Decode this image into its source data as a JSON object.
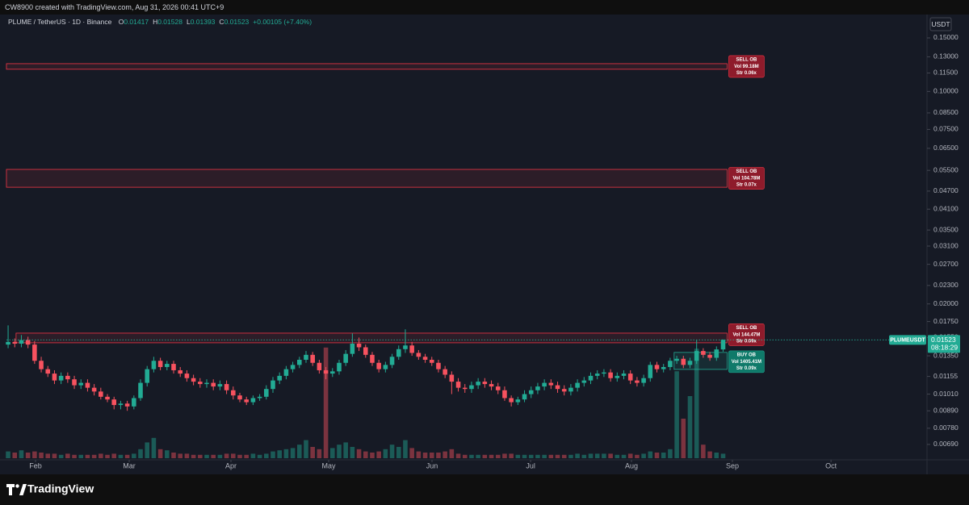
{
  "header": {
    "credit": "CW8900 created with TradingView.com, Aug 31, 2026 00:41 UTC+9"
  },
  "branding": "TradingView",
  "chart_data": {
    "type": "candlestick",
    "title": "PLUME / TetherUS · 1D · Binance",
    "ohlc": [
      {
        "label": "O",
        "value": 0.01417
      },
      {
        "label": "H",
        "value": 0.01528
      },
      {
        "label": "L",
        "value": 0.01393
      },
      {
        "label": "C",
        "value": 0.01523
      }
    ],
    "change": "+0.00105 (+7.40%)",
    "currency": "USDT",
    "symbol": "PLUMEUSDT",
    "last_price": 0.01523,
    "countdown": "08:18:29",
    "up_color": "#22ab94",
    "down_color": "#f7525f",
    "open": [
      0.0147,
      0.015,
      0.0148,
      0.0152,
      0.0147,
      0.013,
      0.0122,
      0.0118,
      0.0112,
      0.0116,
      0.0113,
      0.0108,
      0.011,
      0.0106,
      0.0103,
      0.0099,
      0.0097,
      0.0093,
      0.0094,
      0.0092,
      0.0098,
      0.011,
      0.0122,
      0.013,
      0.0124,
      0.0127,
      0.0121,
      0.0118,
      0.0114,
      0.0111,
      0.0109,
      0.011,
      0.0107,
      0.0109,
      0.0104,
      0.01,
      0.0097,
      0.0095,
      0.0098,
      0.0099,
      0.0105,
      0.0112,
      0.0116,
      0.0122,
      0.0126,
      0.0131,
      0.0136,
      0.0128,
      0.0121,
      0.0118,
      0.012,
      0.0128,
      0.0137,
      0.0148,
      0.0144,
      0.0136,
      0.0128,
      0.0122,
      0.0126,
      0.0134,
      0.0142,
      0.0146,
      0.0138,
      0.0134,
      0.0131,
      0.0128,
      0.0122,
      0.0117,
      0.0111,
      0.0106,
      0.0105,
      0.0108,
      0.0111,
      0.0109,
      0.0107,
      0.0104,
      0.0098,
      0.0095,
      0.0097,
      0.0101,
      0.0104,
      0.0107,
      0.011,
      0.0108,
      0.0105,
      0.0103,
      0.0106,
      0.011,
      0.0112,
      0.0116,
      0.0118,
      0.0119,
      0.0114,
      0.0116,
      0.0118,
      0.0112,
      0.011,
      0.0114,
      0.0126,
      0.0122,
      0.0124,
      0.013,
      0.0132,
      0.0126,
      0.013,
      0.014,
      0.0136,
      0.0133,
      0.01417
    ],
    "high": [
      0.017,
      0.0154,
      0.0158,
      0.0156,
      0.0151,
      0.0134,
      0.0125,
      0.0121,
      0.0119,
      0.0119,
      0.0116,
      0.0113,
      0.0113,
      0.0109,
      0.0106,
      0.0101,
      0.0099,
      0.0096,
      0.0096,
      0.01,
      0.0113,
      0.0125,
      0.0134,
      0.0133,
      0.013,
      0.013,
      0.0124,
      0.0121,
      0.0117,
      0.0114,
      0.0113,
      0.0113,
      0.0112,
      0.0112,
      0.0107,
      0.0102,
      0.0099,
      0.01,
      0.0101,
      0.0108,
      0.0115,
      0.0119,
      0.0125,
      0.0129,
      0.0134,
      0.014,
      0.0139,
      0.0131,
      0.0124,
      0.0123,
      0.0131,
      0.0141,
      0.016,
      0.0155,
      0.0147,
      0.0139,
      0.0131,
      0.0129,
      0.0137,
      0.0146,
      0.0165,
      0.015,
      0.0141,
      0.0137,
      0.0134,
      0.0131,
      0.0125,
      0.012,
      0.0114,
      0.0109,
      0.0111,
      0.0114,
      0.0114,
      0.0112,
      0.011,
      0.0107,
      0.01,
      0.0099,
      0.0104,
      0.0107,
      0.011,
      0.0113,
      0.0113,
      0.0111,
      0.0108,
      0.0109,
      0.0113,
      0.0115,
      0.0119,
      0.0121,
      0.0122,
      0.0122,
      0.0119,
      0.0121,
      0.0121,
      0.0115,
      0.0117,
      0.0129,
      0.0129,
      0.0127,
      0.0133,
      0.0135,
      0.0135,
      0.0133,
      0.0152,
      0.0143,
      0.0139,
      0.0145,
      0.01528
    ],
    "low": [
      0.0143,
      0.0144,
      0.0144,
      0.0143,
      0.0127,
      0.0119,
      0.0115,
      0.0109,
      0.0109,
      0.011,
      0.0105,
      0.0105,
      0.0103,
      0.01,
      0.0097,
      0.0095,
      0.009,
      0.009,
      0.0089,
      0.009,
      0.0096,
      0.0107,
      0.0119,
      0.0121,
      0.0121,
      0.0118,
      0.0115,
      0.0111,
      0.0108,
      0.0106,
      0.0106,
      0.0104,
      0.0104,
      0.0101,
      0.0097,
      0.0095,
      0.0093,
      0.0093,
      0.0096,
      0.0097,
      0.0102,
      0.0109,
      0.0113,
      0.0119,
      0.0123,
      0.0128,
      0.0125,
      0.0118,
      0.0113,
      0.0115,
      0.0117,
      0.0125,
      0.0134,
      0.014,
      0.0133,
      0.0125,
      0.0119,
      0.0119,
      0.0123,
      0.0131,
      0.0138,
      0.0135,
      0.0131,
      0.0128,
      0.0125,
      0.0119,
      0.0114,
      0.0101,
      0.0103,
      0.0102,
      0.0102,
      0.0105,
      0.0106,
      0.0104,
      0.0101,
      0.0096,
      0.0092,
      0.0093,
      0.0095,
      0.0098,
      0.0101,
      0.0104,
      0.0105,
      0.0102,
      0.01,
      0.01,
      0.0103,
      0.0107,
      0.0109,
      0.0113,
      0.0115,
      0.0111,
      0.0111,
      0.0113,
      0.0109,
      0.0107,
      0.0107,
      0.0111,
      0.0119,
      0.0119,
      0.0121,
      0.0127,
      0.0123,
      0.0123,
      0.0127,
      0.0133,
      0.013,
      0.013,
      0.01393
    ],
    "close": [
      0.015,
      0.0148,
      0.0152,
      0.0147,
      0.013,
      0.0122,
      0.0118,
      0.0112,
      0.0116,
      0.0113,
      0.0108,
      0.011,
      0.0106,
      0.0103,
      0.0099,
      0.0097,
      0.0093,
      0.0094,
      0.0092,
      0.0098,
      0.011,
      0.0122,
      0.013,
      0.0124,
      0.0127,
      0.0121,
      0.0118,
      0.0114,
      0.0111,
      0.0109,
      0.011,
      0.0107,
      0.0109,
      0.0104,
      0.01,
      0.0097,
      0.0095,
      0.0098,
      0.0099,
      0.0105,
      0.0112,
      0.0116,
      0.0122,
      0.0126,
      0.0131,
      0.0136,
      0.0128,
      0.0121,
      0.0118,
      0.012,
      0.0128,
      0.0137,
      0.0148,
      0.0144,
      0.0136,
      0.0128,
      0.0122,
      0.0126,
      0.0134,
      0.0142,
      0.0146,
      0.0138,
      0.0134,
      0.0131,
      0.0128,
      0.0122,
      0.0117,
      0.0111,
      0.0106,
      0.0105,
      0.0108,
      0.0111,
      0.0109,
      0.0107,
      0.0104,
      0.0098,
      0.0095,
      0.0097,
      0.0101,
      0.0104,
      0.0107,
      0.011,
      0.0108,
      0.0105,
      0.0103,
      0.0106,
      0.011,
      0.0112,
      0.0116,
      0.0118,
      0.0119,
      0.0114,
      0.0116,
      0.0118,
      0.0112,
      0.011,
      0.0114,
      0.0126,
      0.0122,
      0.0124,
      0.013,
      0.0132,
      0.0126,
      0.013,
      0.014,
      0.0136,
      0.0133,
      0.01417,
      0.01523
    ],
    "volume": [
      6,
      5,
      7,
      5,
      6,
      5,
      4,
      4,
      3,
      4,
      3,
      3,
      3,
      3,
      4,
      3,
      4,
      3,
      3,
      4,
      8,
      14,
      18,
      8,
      7,
      5,
      4,
      4,
      3,
      3,
      3,
      3,
      3,
      4,
      4,
      3,
      3,
      4,
      3,
      4,
      6,
      7,
      8,
      9,
      12,
      16,
      10,
      8,
      98,
      9,
      12,
      14,
      10,
      8,
      6,
      5,
      6,
      8,
      12,
      10,
      16,
      9,
      6,
      5,
      5,
      5,
      6,
      8,
      4,
      3,
      3,
      3,
      3,
      3,
      3,
      4,
      4,
      3,
      3,
      3,
      3,
      3,
      3,
      3,
      3,
      3,
      4,
      3,
      4,
      4,
      4,
      4,
      3,
      3,
      4,
      3,
      4,
      6,
      5,
      5,
      8,
      77,
      35,
      55,
      97,
      12,
      6,
      5,
      4
    ],
    "volume_lim": [
      0,
      100
    ],
    "xlim": [
      -0.25,
      138.8
    ],
    "xticks": [
      {
        "value": 4.14,
        "label": "Feb"
      },
      {
        "value": 18.29,
        "label": "Mar"
      },
      {
        "value": 33.66,
        "label": "Apr"
      },
      {
        "value": 48.42,
        "label": "May"
      },
      {
        "value": 64.03,
        "label": "Jun"
      },
      {
        "value": 78.92,
        "label": "Jul"
      },
      {
        "value": 94.16,
        "label": "Aug"
      },
      {
        "value": 109.4,
        "label": "Sep"
      },
      {
        "value": 124.3,
        "label": "Oct"
      }
    ],
    "ylim": [
      0.00614,
      0.1614
    ],
    "log_scale": true,
    "grid": false,
    "yticks": [
      {
        "value": 0.15,
        "label": "0.15000"
      },
      {
        "value": 0.13,
        "label": "0.13000"
      },
      {
        "value": 0.115,
        "label": "0.11500"
      },
      {
        "value": 0.1,
        "label": "0.10000"
      },
      {
        "value": 0.085,
        "label": "0.08500"
      },
      {
        "value": 0.075,
        "label": "0.07500"
      },
      {
        "value": 0.065,
        "label": "0.06500"
      },
      {
        "value": 0.055,
        "label": "0.05500"
      },
      {
        "value": 0.047,
        "label": "0.04700"
      },
      {
        "value": 0.041,
        "label": "0.04100"
      },
      {
        "value": 0.035,
        "label": "0.03500"
      },
      {
        "value": 0.031,
        "label": "0.03100"
      },
      {
        "value": 0.027,
        "label": "0.02700"
      },
      {
        "value": 0.023,
        "label": "0.02300"
      },
      {
        "value": 0.02,
        "label": "0.02000"
      },
      {
        "value": 0.0175,
        "label": "0.01750"
      },
      {
        "value": 0.0155,
        "label": "0.01550"
      },
      {
        "value": 0.0135,
        "label": "0.01350"
      },
      {
        "value": 0.01155,
        "label": "0.01155"
      },
      {
        "value": 0.0101,
        "label": "0.01010"
      },
      {
        "value": 0.0089,
        "label": "0.00890"
      },
      {
        "value": 0.0078,
        "label": "0.00780"
      },
      {
        "value": 0.0069,
        "label": "0.00690"
      }
    ],
    "zones": [
      {
        "kind": "SELL OB",
        "vol": "Vol 99.18M",
        "strength": "Str 0.06x",
        "top": 0.1234,
        "bottom": 0.1183,
        "start": -0.25,
        "end": 108.6,
        "color": "#f23645"
      },
      {
        "kind": "SELL OB",
        "vol": "Vol 104.78M",
        "strength": "Str 0.07x",
        "top": 0.0554,
        "bottom": 0.0484,
        "start": -0.25,
        "end": 108.6,
        "color": "#f23645"
      },
      {
        "kind": "SELL OB",
        "vol": "Vol 144.47M",
        "strength": "Str 0.09x",
        "top": 0.01603,
        "bottom": 0.0149,
        "start": 1.2,
        "end": 108.6,
        "color": "#f23645"
      },
      {
        "kind": "BUY OB",
        "vol": "Vol 1405.41M",
        "strength": "Str 0.09x",
        "top": 0.01385,
        "bottom": 0.01218,
        "start": 100.6,
        "end": 108.6,
        "color": "#22ab94"
      }
    ]
  }
}
